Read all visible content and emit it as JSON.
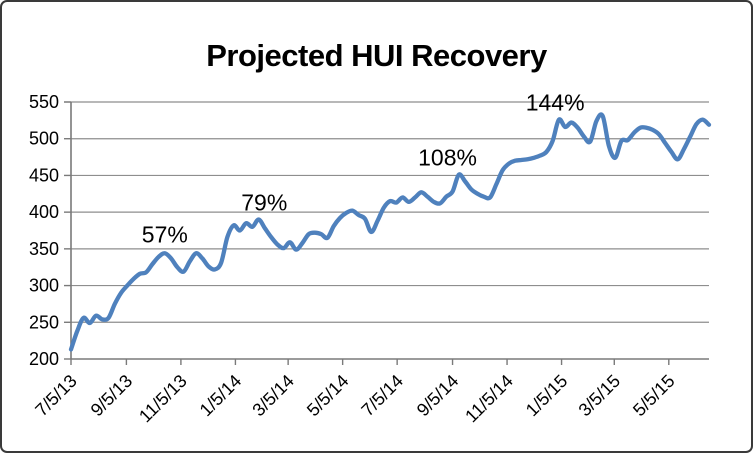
{
  "chart_data": {
    "type": "line",
    "title": "Projected HUI Recovery",
    "xlabel": "",
    "ylabel": "",
    "ylim": [
      200,
      550
    ],
    "y_ticks": [
      200,
      250,
      300,
      350,
      400,
      450,
      500,
      550
    ],
    "xlim_weeks": [
      0,
      102
    ],
    "x_ticks": [
      {
        "label": "7/5/13",
        "week": 0
      },
      {
        "label": "9/5/13",
        "week": 8.857
      },
      {
        "label": "11/5/13",
        "week": 17.571
      },
      {
        "label": "1/5/14",
        "week": 26.286
      },
      {
        "label": "3/5/14",
        "week": 34.714
      },
      {
        "label": "5/5/14",
        "week": 43.429
      },
      {
        "label": "7/5/14",
        "week": 52.143
      },
      {
        "label": "9/5/14",
        "week": 61.0
      },
      {
        "label": "11/5/14",
        "week": 69.714
      },
      {
        "label": "1/5/15",
        "week": 78.429
      },
      {
        "label": "3/5/15",
        "week": 86.857
      },
      {
        "label": "5/5/15",
        "week": 95.571
      }
    ],
    "grid": "horizontal",
    "legend": "none",
    "series": [
      {
        "name": "Projected HUI",
        "color": "#4F81BD",
        "x_unit": "weeks since 7/5/13",
        "values": [
          213,
          238,
          256,
          249,
          259,
          254,
          256,
          275,
          290,
          300,
          309,
          316,
          318,
          329,
          339,
          344,
          337,
          325,
          319,
          333,
          344,
          337,
          326,
          322,
          331,
          366,
          382,
          375,
          385,
          380,
          390,
          378,
          366,
          356,
          351,
          359,
          349,
          358,
          370,
          372,
          370,
          365,
          381,
          392,
          399,
          402,
          396,
          391,
          373,
          388,
          406,
          415,
          413,
          420,
          414,
          420,
          427,
          421,
          414,
          412,
          421,
          428,
          451,
          442,
          431,
          425,
          421,
          420,
          438,
          457,
          466,
          470,
          471,
          472,
          474,
          477,
          482,
          497,
          526,
          516,
          522,
          515,
          503,
          496,
          524,
          531,
          490,
          474,
          497,
          498,
          508,
          515,
          515,
          512,
          506,
          494,
          482,
          472,
          486,
          503,
          520,
          526,
          519
        ]
      }
    ],
    "annotations": [
      {
        "label": "57%",
        "week": 15.0,
        "value": 368
      },
      {
        "label": "79%",
        "week": 30.9,
        "value": 412
      },
      {
        "label": "108%",
        "week": 60.2,
        "value": 473
      },
      {
        "label": "144%",
        "week": 77.4,
        "value": 548
      }
    ],
    "colors": {
      "line": "#4F81BD",
      "gridline": "#8E8E8E",
      "axis": "#7A7A7A",
      "text": "#000000",
      "frame_border": "#3A3A3A",
      "background": "#FFFFFF"
    }
  }
}
